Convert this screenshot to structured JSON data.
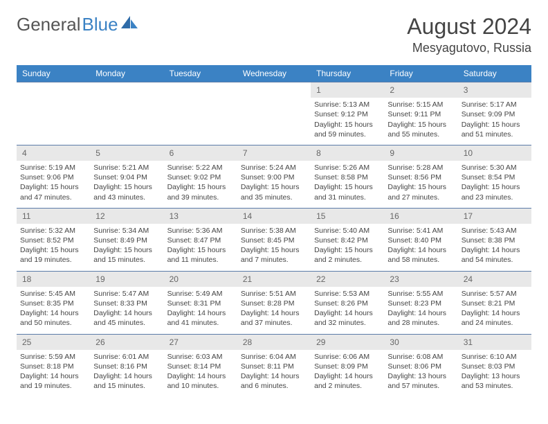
{
  "logo": {
    "text1": "General",
    "text2": "Blue"
  },
  "title": "August 2024",
  "location": "Mesyagutovo, Russia",
  "header_bg": "#3b82c4",
  "daynum_bg": "#e8e8e8",
  "border_color": "#5a7ba8",
  "weekdays": [
    "Sunday",
    "Monday",
    "Tuesday",
    "Wednesday",
    "Thursday",
    "Friday",
    "Saturday"
  ],
  "weeks": [
    {
      "nums": [
        "",
        "",
        "",
        "",
        "1",
        "2",
        "3"
      ],
      "cells": [
        null,
        null,
        null,
        null,
        {
          "sr": "Sunrise: 5:13 AM",
          "ss": "Sunset: 9:12 PM",
          "dl": "Daylight: 15 hours and 59 minutes."
        },
        {
          "sr": "Sunrise: 5:15 AM",
          "ss": "Sunset: 9:11 PM",
          "dl": "Daylight: 15 hours and 55 minutes."
        },
        {
          "sr": "Sunrise: 5:17 AM",
          "ss": "Sunset: 9:09 PM",
          "dl": "Daylight: 15 hours and 51 minutes."
        }
      ]
    },
    {
      "nums": [
        "4",
        "5",
        "6",
        "7",
        "8",
        "9",
        "10"
      ],
      "cells": [
        {
          "sr": "Sunrise: 5:19 AM",
          "ss": "Sunset: 9:06 PM",
          "dl": "Daylight: 15 hours and 47 minutes."
        },
        {
          "sr": "Sunrise: 5:21 AM",
          "ss": "Sunset: 9:04 PM",
          "dl": "Daylight: 15 hours and 43 minutes."
        },
        {
          "sr": "Sunrise: 5:22 AM",
          "ss": "Sunset: 9:02 PM",
          "dl": "Daylight: 15 hours and 39 minutes."
        },
        {
          "sr": "Sunrise: 5:24 AM",
          "ss": "Sunset: 9:00 PM",
          "dl": "Daylight: 15 hours and 35 minutes."
        },
        {
          "sr": "Sunrise: 5:26 AM",
          "ss": "Sunset: 8:58 PM",
          "dl": "Daylight: 15 hours and 31 minutes."
        },
        {
          "sr": "Sunrise: 5:28 AM",
          "ss": "Sunset: 8:56 PM",
          "dl": "Daylight: 15 hours and 27 minutes."
        },
        {
          "sr": "Sunrise: 5:30 AM",
          "ss": "Sunset: 8:54 PM",
          "dl": "Daylight: 15 hours and 23 minutes."
        }
      ]
    },
    {
      "nums": [
        "11",
        "12",
        "13",
        "14",
        "15",
        "16",
        "17"
      ],
      "cells": [
        {
          "sr": "Sunrise: 5:32 AM",
          "ss": "Sunset: 8:52 PM",
          "dl": "Daylight: 15 hours and 19 minutes."
        },
        {
          "sr": "Sunrise: 5:34 AM",
          "ss": "Sunset: 8:49 PM",
          "dl": "Daylight: 15 hours and 15 minutes."
        },
        {
          "sr": "Sunrise: 5:36 AM",
          "ss": "Sunset: 8:47 PM",
          "dl": "Daylight: 15 hours and 11 minutes."
        },
        {
          "sr": "Sunrise: 5:38 AM",
          "ss": "Sunset: 8:45 PM",
          "dl": "Daylight: 15 hours and 7 minutes."
        },
        {
          "sr": "Sunrise: 5:40 AM",
          "ss": "Sunset: 8:42 PM",
          "dl": "Daylight: 15 hours and 2 minutes."
        },
        {
          "sr": "Sunrise: 5:41 AM",
          "ss": "Sunset: 8:40 PM",
          "dl": "Daylight: 14 hours and 58 minutes."
        },
        {
          "sr": "Sunrise: 5:43 AM",
          "ss": "Sunset: 8:38 PM",
          "dl": "Daylight: 14 hours and 54 minutes."
        }
      ]
    },
    {
      "nums": [
        "18",
        "19",
        "20",
        "21",
        "22",
        "23",
        "24"
      ],
      "cells": [
        {
          "sr": "Sunrise: 5:45 AM",
          "ss": "Sunset: 8:35 PM",
          "dl": "Daylight: 14 hours and 50 minutes."
        },
        {
          "sr": "Sunrise: 5:47 AM",
          "ss": "Sunset: 8:33 PM",
          "dl": "Daylight: 14 hours and 45 minutes."
        },
        {
          "sr": "Sunrise: 5:49 AM",
          "ss": "Sunset: 8:31 PM",
          "dl": "Daylight: 14 hours and 41 minutes."
        },
        {
          "sr": "Sunrise: 5:51 AM",
          "ss": "Sunset: 8:28 PM",
          "dl": "Daylight: 14 hours and 37 minutes."
        },
        {
          "sr": "Sunrise: 5:53 AM",
          "ss": "Sunset: 8:26 PM",
          "dl": "Daylight: 14 hours and 32 minutes."
        },
        {
          "sr": "Sunrise: 5:55 AM",
          "ss": "Sunset: 8:23 PM",
          "dl": "Daylight: 14 hours and 28 minutes."
        },
        {
          "sr": "Sunrise: 5:57 AM",
          "ss": "Sunset: 8:21 PM",
          "dl": "Daylight: 14 hours and 24 minutes."
        }
      ]
    },
    {
      "nums": [
        "25",
        "26",
        "27",
        "28",
        "29",
        "30",
        "31"
      ],
      "cells": [
        {
          "sr": "Sunrise: 5:59 AM",
          "ss": "Sunset: 8:18 PM",
          "dl": "Daylight: 14 hours and 19 minutes."
        },
        {
          "sr": "Sunrise: 6:01 AM",
          "ss": "Sunset: 8:16 PM",
          "dl": "Daylight: 14 hours and 15 minutes."
        },
        {
          "sr": "Sunrise: 6:03 AM",
          "ss": "Sunset: 8:14 PM",
          "dl": "Daylight: 14 hours and 10 minutes."
        },
        {
          "sr": "Sunrise: 6:04 AM",
          "ss": "Sunset: 8:11 PM",
          "dl": "Daylight: 14 hours and 6 minutes."
        },
        {
          "sr": "Sunrise: 6:06 AM",
          "ss": "Sunset: 8:09 PM",
          "dl": "Daylight: 14 hours and 2 minutes."
        },
        {
          "sr": "Sunrise: 6:08 AM",
          "ss": "Sunset: 8:06 PM",
          "dl": "Daylight: 13 hours and 57 minutes."
        },
        {
          "sr": "Sunrise: 6:10 AM",
          "ss": "Sunset: 8:03 PM",
          "dl": "Daylight: 13 hours and 53 minutes."
        }
      ]
    }
  ]
}
